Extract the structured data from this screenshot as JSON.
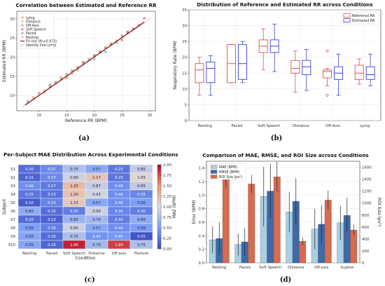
{
  "panels": {
    "a": {
      "caption": "(a)",
      "chart_data": {
        "type": "scatter",
        "title": "Correlation between Estimated and Reference RR",
        "xlabel": "Reference RR (BPM)",
        "ylabel": "Estimated RR (BPM)",
        "xlim": [
          6,
          31
        ],
        "ylim": [
          6,
          32
        ],
        "xticks": [
          10,
          15,
          20,
          25,
          30
        ],
        "yticks": [
          10,
          15,
          20,
          25,
          30
        ],
        "grid": true,
        "legend_position": "top-left",
        "series": [
          {
            "name": "Lying",
            "color": "#e8833a",
            "marker": "x",
            "x": [
              8,
              10,
              12,
              13,
              14,
              15,
              16,
              17,
              18,
              20
            ],
            "y": [
              8.4,
              10.6,
              12.3,
              13.5,
              14.2,
              14.6,
              16.4,
              17.3,
              18.4,
              20.5
            ]
          },
          {
            "name": "Distance",
            "color": "#c4b07a",
            "marker": "x",
            "x": [
              9,
              11,
              12,
              14,
              16,
              18,
              19,
              20,
              22,
              23
            ],
            "y": [
              9.5,
              10.7,
              12.8,
              14.6,
              15.6,
              18.7,
              19.5,
              20.4,
              22.6,
              23.3
            ]
          },
          {
            "name": "Off-Axis",
            "color": "#9aa0a6",
            "marker": "x",
            "x": [
              8,
              10,
              12,
              13,
              15,
              16,
              17,
              18,
              19,
              20,
              21,
              22,
              23,
              24,
              25,
              26
            ],
            "y": [
              8.5,
              10.5,
              12.6,
              13.3,
              15.6,
              16.5,
              16.6,
              18.5,
              19.4,
              19.5,
              21.5,
              22.4,
              23.5,
              24.3,
              25.6,
              26.4
            ]
          },
          {
            "name": "Soft Speech",
            "color": "#d9534f",
            "marker": "x",
            "x": [
              21,
              23,
              25,
              26,
              27,
              28,
              29
            ],
            "y": [
              21.3,
              23.5,
              24.5,
              26.6,
              27.4,
              28.3,
              30.2
            ]
          },
          {
            "name": "Paced",
            "color": "#8a8a8a",
            "marker": "x",
            "x": [
              12,
              14,
              18,
              20,
              22,
              24,
              25
            ],
            "y": [
              12.5,
              14.6,
              18.7,
              20.3,
              21.4,
              23.8,
              25.5
            ]
          },
          {
            "name": "Resting",
            "color": "#b5b5b5",
            "marker": "x",
            "x": [
              8,
              9,
              10,
              11,
              12,
              13,
              14,
              15,
              16,
              17,
              18
            ],
            "y": [
              8.3,
              9.2,
              10.5,
              11.4,
              12.4,
              13.5,
              14.7,
              15.4,
              16.2,
              17.5,
              18.3
            ]
          }
        ],
        "fit_line": {
          "name": "Fit line (R²=0.973)",
          "color": "#8b1a1a",
          "slope": 1.01,
          "intercept": -0.1
        },
        "identity_line": {
          "name": "Identity line (y=x)",
          "color": "#999999",
          "style": "dashed"
        }
      }
    },
    "b": {
      "caption": "(b)",
      "chart_data": {
        "type": "box",
        "title": "Distribution of Reference and Estimated RR across Conditions",
        "xlabel": "",
        "ylabel": "Respiratory Rate (BPM)",
        "ylim": [
          0,
          35
        ],
        "yticks": [
          0,
          5,
          10,
          15,
          20,
          25,
          30,
          35
        ],
        "grid": true,
        "legend_position": "top-right",
        "categories": [
          "Resting",
          "Paced",
          "Soft Speech",
          "Distance",
          "Off-Axis",
          "Lying"
        ],
        "series": [
          {
            "name": "Reference RR",
            "color": "#d9534f",
            "boxes": [
              {
                "min": 8,
                "q1": 12,
                "median": 16,
                "q3": 18,
                "max": 20,
                "outliers": []
              },
              {
                "min": 12,
                "q1": 12,
                "median": 18,
                "q3": 24,
                "max": 24,
                "outliers": []
              },
              {
                "min": 16,
                "q1": 21.5,
                "median": 23.5,
                "q3": 25.5,
                "max": 29,
                "outliers": []
              },
              {
                "min": 9,
                "q1": 15,
                "median": 16.5,
                "q3": 19,
                "max": 22,
                "outliers": []
              },
              {
                "min": 11,
                "q1": 13.5,
                "median": 15.5,
                "q3": 16,
                "max": 16.5,
                "outliers": [
                  22,
                  8
                ]
              },
              {
                "min": 11.5,
                "q1": 13,
                "median": 15,
                "q3": 17.5,
                "max": 19.5,
                "outliers": []
              }
            ]
          },
          {
            "name": "Estimated RR",
            "color": "#3b3fd6",
            "boxes": [
              {
                "min": 8,
                "q1": 12,
                "median": 16.5,
                "q3": 18.5,
                "max": 20.5,
                "outliers": []
              },
              {
                "min": 12,
                "q1": 13,
                "median": 18,
                "q3": 24,
                "max": 25,
                "outliers": []
              },
              {
                "min": 15.5,
                "q1": 21.5,
                "median": 23.5,
                "q3": 25.5,
                "max": 30.5,
                "outliers": []
              },
              {
                "min": 9.5,
                "q1": 14.5,
                "median": 17,
                "q3": 19,
                "max": 22.5,
                "outliers": []
              },
              {
                "min": 8,
                "q1": 13,
                "median": 15,
                "q3": 17,
                "max": 21,
                "outliers": []
              },
              {
                "min": 11,
                "q1": 13,
                "median": 14.5,
                "q3": 17,
                "max": 21,
                "outliers": []
              }
            ]
          }
        ]
      }
    },
    "c": {
      "caption": "(c)",
      "chart_data": {
        "type": "heatmap",
        "title": "Per-Subject MAE Distribution Across Experimental Conditions",
        "xlabel": "Condition",
        "ylabel": "Subject",
        "colorbar_label": "MAE (BPM)",
        "colorbar_range": [
          0,
          2
        ],
        "colorbar_ticks": [
          "0.00",
          "0.25",
          "0.50",
          "0.75",
          "1.00",
          "1.25",
          "1.50",
          "1.75",
          "2.00"
        ],
        "columns": [
          "Resting",
          "Paced",
          "Soft Speech",
          "Distance",
          "Off-axis",
          "Posture"
        ],
        "rows": [
          "S1",
          "S2",
          "S3",
          "S4",
          "S5",
          "S6",
          "S7",
          "S8",
          "S9",
          "S10"
        ],
        "values": [
          [
            0.2,
            0.37,
            0.75,
            0.57,
            0.25,
            0.85
          ],
          [
            0.15,
            0.37,
            0.9,
            1.17,
            0.25,
            1.05
          ],
          [
            0.4,
            0.27,
            1.25,
            0.87,
            0.4,
            0.85
          ],
          [
            0.25,
            0.23,
            1.2,
            0.93,
            0.4,
            0.35
          ],
          [
            0.1,
            0.33,
            1.15,
            0.57,
            0.4,
            0.5
          ],
          [
            0.6,
            0.2,
            0.3,
            0.9,
            0.35,
            0.3
          ],
          [
            0.2,
            0.13,
            0.65,
            0.7,
            0.3,
            0.6
          ],
          [
            0.5,
            0.3,
            0.9,
            0.57,
            0.4,
            0.5
          ],
          [
            0.55,
            0.2,
            0.75,
            0.43,
            0.45,
            0.05
          ],
          [
            0.55,
            0.16,
            1.9,
            0.7,
            1.8,
            0.75
          ]
        ]
      }
    },
    "d": {
      "caption": "(d)",
      "chart_data": {
        "type": "bar",
        "title": "Comparison of MAE, RMSE, and ROI Size across Conditions",
        "xlabel": "",
        "ylabel": "Error (BPM)",
        "ylabel_right": "ROI Size (px²)",
        "ylim": [
          0,
          1.5
        ],
        "yticks": [
          0.0,
          0.2,
          0.4,
          0.6,
          0.8,
          1.0,
          1.2,
          1.4
        ],
        "ylim_right": [
          0,
          1700
        ],
        "yticks_right": [
          0,
          200,
          400,
          600,
          800,
          1000,
          1200,
          1400,
          1600
        ],
        "grid": true,
        "legend_position": "top-left",
        "categories": [
          "Resting",
          "Paced",
          "Soft Speech",
          "Distance",
          "Off-axis",
          "Supine"
        ],
        "series": [
          {
            "name": "MAE (BPM)",
            "color": "#a9cfe3",
            "axis": "left",
            "values": [
              0.34,
              0.27,
              0.98,
              0.75,
              0.5,
              0.59
            ],
            "err": [
              0.2,
              0.16,
              0.44,
              0.3,
              0.3,
              0.25
            ]
          },
          {
            "name": "RMSE (BPM)",
            "color": "#3e6aa8",
            "axis": "left",
            "values": [
              0.36,
              0.31,
              1.06,
              0.91,
              0.57,
              0.7
            ],
            "err": [
              0.24,
              0.2,
              0.4,
              0.34,
              0.28,
              0.26
            ]
          },
          {
            "name": "ROI Size (px²)",
            "color": "#d76b50",
            "axis": "right",
            "values": [
              1440,
              1320,
              1440,
              360,
              1050,
              550
            ],
            "err": [
              180,
              150,
              250,
              60,
              160,
              90
            ]
          }
        ]
      }
    }
  }
}
